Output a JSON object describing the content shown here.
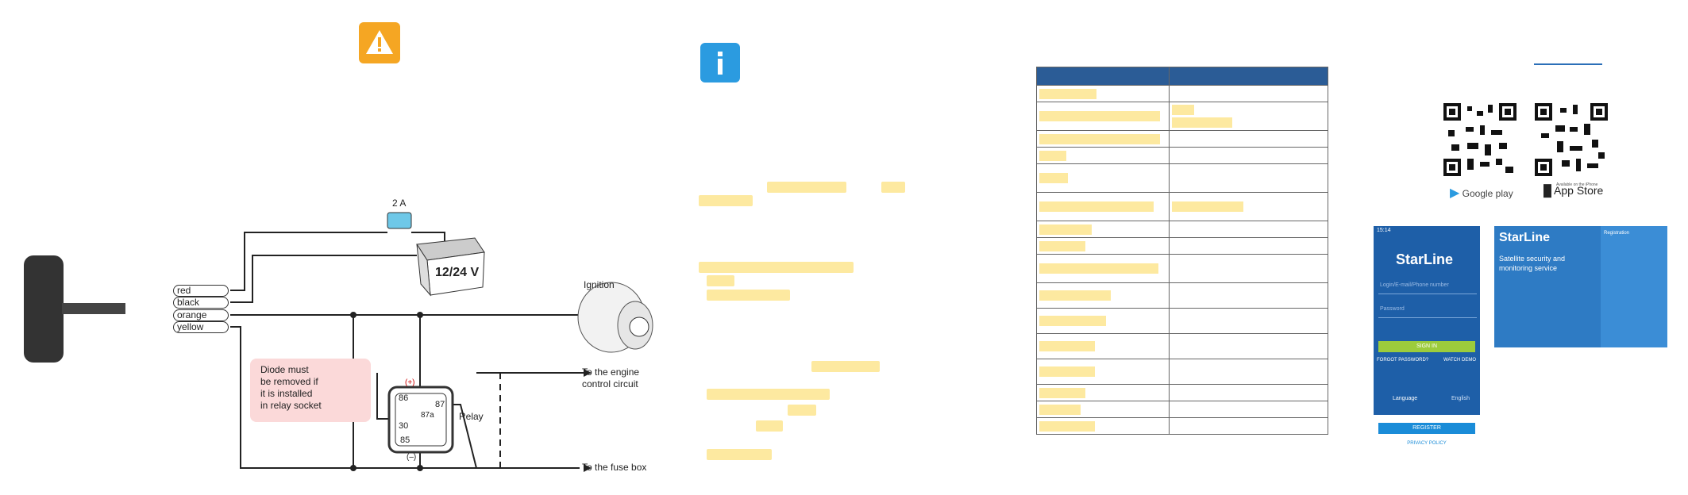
{
  "diagram": {
    "fuse_label": "2 A",
    "battery_label": "12/24 V",
    "ignition_label": "Ignition",
    "wires": [
      "red",
      "black",
      "orange",
      "yellow"
    ],
    "diode_note": [
      "Diode must",
      "be removed if",
      "it is installed",
      "in relay socket"
    ],
    "relay_label": "Relay",
    "relay_pins": [
      "86",
      "87",
      "87a",
      "30",
      "85"
    ],
    "relay_plus": "(+)",
    "relay_minus": "(–)",
    "engine_label": [
      "To the engine",
      "control circuit"
    ],
    "fusebox_label": "To the fuse box"
  },
  "apps": {
    "google_play": "Google play",
    "app_store": "App Store",
    "app_store_small": "Available on the iPhone"
  },
  "phone": {
    "status_time": "15:14",
    "logo": "StarLine",
    "login_placeholder": "Login/E-mail/Phone number",
    "password_placeholder": "Password",
    "sign_in": "SIGN IN",
    "forgot": "FORGOT PASSWORD?",
    "watch_demo": "WATCH DEMO",
    "language_label": "Language",
    "language_value": "English",
    "register": "REGISTER",
    "privacy": "PRIVACY POLICY"
  },
  "web": {
    "logo": "StarLine",
    "tagline_1": "Satellite security and",
    "tagline_2": "monitoring service",
    "panel_title": "Registration"
  }
}
